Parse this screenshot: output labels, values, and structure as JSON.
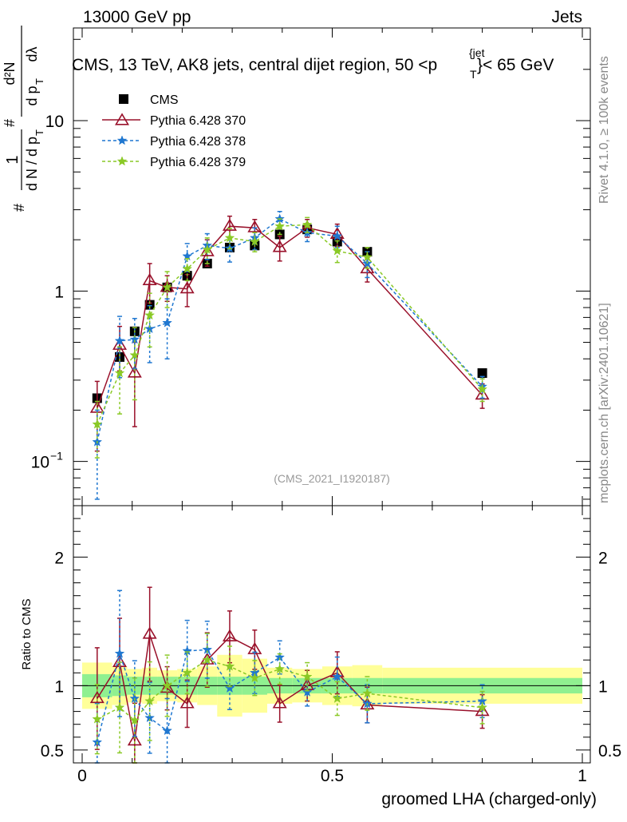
{
  "header": {
    "left_label": "13000 GeV pp",
    "right_label": "Jets"
  },
  "side_labels": {
    "top": "Rivet 4.1.0, ≥ 100k events",
    "bottom": "mcplots.cern.ch [arXiv:2401.10621]"
  },
  "chart_data": {
    "type": "scatter",
    "title": "CMS, 13 TeV, AK8 jets, central dijet region, 50 <p_T^{jet}< 65 GeV",
    "title_parts": {
      "prefix": "CMS, 13 TeV, AK8 jets, central dijet region, 50 <p",
      "sub": "T",
      "sup": "{jet",
      "suffix": "}< 65 GeV"
    },
    "watermark": "(CMS_2021_I1920187)",
    "xlabel": "groomed LHA (charged-only)",
    "ylabel_main": "#1/dN/dp_T #d^2N/dp_T dλ",
    "ylabel_ratio": "Ratio to CMS",
    "xlim": [
      0,
      1
    ],
    "ylim_main": [
      0.055,
      35
    ],
    "ylim_ratio": [
      0.4,
      2.4
    ],
    "x_ticks": [
      "0",
      "0.5",
      "1"
    ],
    "y_ticks_main": [
      "10^-1",
      "1",
      "10"
    ],
    "y_ticks_ratio": [
      "0.5",
      "1",
      "2"
    ],
    "x": [
      0.03,
      0.075,
      0.105,
      0.135,
      0.17,
      0.21,
      0.25,
      0.295,
      0.345,
      0.395,
      0.45,
      0.51,
      0.57,
      0.8
    ],
    "bin_edges": [
      0.0,
      0.06,
      0.09,
      0.12,
      0.15,
      0.19,
      0.23,
      0.27,
      0.32,
      0.37,
      0.42,
      0.48,
      0.54,
      0.6,
      1.0
    ],
    "uncertainty_bands": {
      "stat": [
        0.09,
        0.08,
        0.07,
        0.07,
        0.07,
        0.07,
        0.07,
        0.07,
        0.07,
        0.06,
        0.06,
        0.06,
        0.06,
        0.06
      ],
      "total": [
        0.18,
        0.15,
        0.13,
        0.14,
        0.12,
        0.13,
        0.15,
        0.24,
        0.21,
        0.14,
        0.13,
        0.15,
        0.16,
        0.14
      ],
      "stat_color": "#90f090",
      "total_color": "#ffff99"
    },
    "series": [
      {
        "name": "CMS",
        "style": "data",
        "color": "#000000",
        "values": [
          0.235,
          0.41,
          0.58,
          0.83,
          1.05,
          1.23,
          1.45,
          1.8,
          1.85,
          2.15,
          2.3,
          1.95,
          1.7,
          0.33
        ],
        "ratio": [
          1,
          1,
          1,
          1,
          1,
          1,
          1,
          1,
          1,
          1,
          1,
          1,
          1,
          1
        ]
      },
      {
        "name": "Pythia 6.428 370",
        "style": "solid-triangle",
        "color": "#99102a",
        "values": [
          0.205,
          0.48,
          0.33,
          1.15,
          1.05,
          1.03,
          1.7,
          2.4,
          2.35,
          1.8,
          2.35,
          2.15,
          1.35,
          0.245
        ],
        "errors": [
          0.09,
          0.14,
          0.17,
          0.3,
          0.18,
          0.22,
          0.3,
          0.35,
          0.28,
          0.3,
          0.28,
          0.32,
          0.22,
          0.04
        ],
        "ratio": [
          0.9,
          1.18,
          0.57,
          1.4,
          0.98,
          0.86,
          1.2,
          1.38,
          1.28,
          0.86,
          1.0,
          1.1,
          0.85,
          0.8
        ]
      },
      {
        "name": "Pythia 6.428 378",
        "style": "dashed-star",
        "color": "#1f77d0",
        "values": [
          0.13,
          0.51,
          0.52,
          0.6,
          0.65,
          1.6,
          1.85,
          1.78,
          2.05,
          2.65,
          2.2,
          2.1,
          1.45,
          0.275
        ],
        "errors": [
          0.07,
          0.2,
          0.17,
          0.22,
          0.25,
          0.3,
          0.32,
          0.3,
          0.3,
          0.28,
          0.25,
          0.3,
          0.25,
          0.04
        ],
        "ratio": [
          0.56,
          1.25,
          0.9,
          0.75,
          0.65,
          1.27,
          1.28,
          0.98,
          1.1,
          1.22,
          0.95,
          1.07,
          0.86,
          0.88
        ]
      },
      {
        "name": "Pythia 6.428 379",
        "style": "dashed-star",
        "color": "#8ac926",
        "values": [
          0.165,
          0.33,
          0.42,
          0.72,
          1.05,
          1.35,
          1.75,
          2.05,
          1.95,
          2.4,
          2.45,
          1.72,
          1.58,
          0.265
        ],
        "errors": [
          0.06,
          0.14,
          0.19,
          0.25,
          0.25,
          0.2,
          0.3,
          0.28,
          0.25,
          0.25,
          0.25,
          0.25,
          0.22,
          0.04
        ],
        "ratio": [
          0.74,
          0.83,
          0.73,
          0.88,
          1.0,
          1.1,
          1.2,
          1.15,
          1.06,
          1.13,
          1.07,
          0.9,
          0.94,
          0.83
        ]
      }
    ]
  }
}
